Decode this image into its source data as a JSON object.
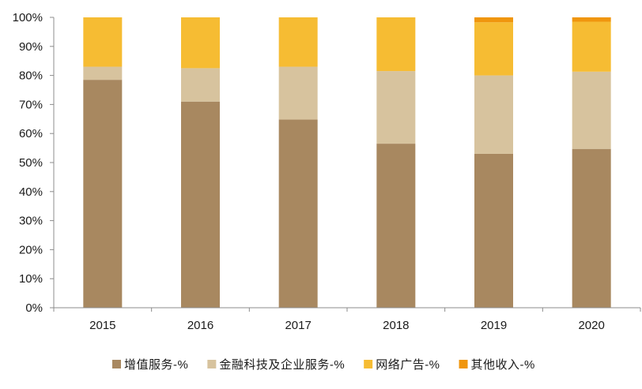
{
  "chart_data": {
    "type": "bar",
    "stacked": true,
    "categories": [
      "2015",
      "2016",
      "2017",
      "2018",
      "2019",
      "2020"
    ],
    "series": [
      {
        "name": "增值服务-%",
        "color": "#A88860",
        "values": [
          78.5,
          71.0,
          64.8,
          56.5,
          53.0,
          54.7
        ]
      },
      {
        "name": "金融科技及企业服务-%",
        "color": "#D7C39E",
        "values": [
          4.5,
          11.5,
          18.2,
          25.0,
          27.0,
          26.6
        ]
      },
      {
        "name": "网络广告-%",
        "color": "#F6BC33",
        "values": [
          17.0,
          17.5,
          17.0,
          18.5,
          18.3,
          17.2
        ]
      },
      {
        "name": "其他收入-%",
        "color": "#F0960E",
        "values": [
          0.0,
          0.0,
          0.0,
          0.0,
          1.7,
          1.5
        ]
      }
    ],
    "yticks": [
      "0%",
      "10%",
      "20%",
      "30%",
      "40%",
      "50%",
      "60%",
      "70%",
      "80%",
      "90%",
      "100%"
    ],
    "ylim": [
      0,
      100
    ],
    "grid": false,
    "legend_position": "bottom",
    "title": "",
    "xlabel": "",
    "ylabel": ""
  }
}
